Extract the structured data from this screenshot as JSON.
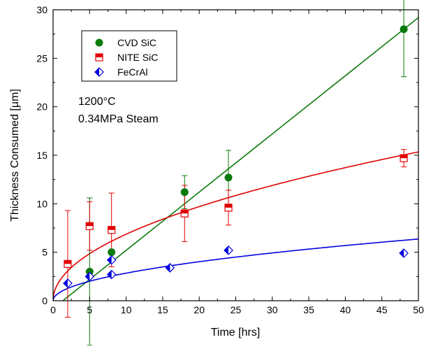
{
  "chart_data": {
    "type": "scatter",
    "title": "",
    "xlabel": "Time [hrs]",
    "ylabel": "Thickness Consumed [μm]",
    "xlim": [
      0,
      50
    ],
    "ylim": [
      0,
      30
    ],
    "x_ticks": [
      "0",
      "5",
      "10",
      "15",
      "20",
      "25",
      "30",
      "35",
      "40",
      "45",
      "50"
    ],
    "y_ticks": [
      "0",
      "5",
      "10",
      "15",
      "20",
      "25",
      "30"
    ],
    "grid": false,
    "legend_position": "top-left",
    "annotations": [
      "1200°C",
      "0.34MPa Steam"
    ],
    "series": [
      {
        "name": "CVD SiC",
        "color": "#0a7a0a",
        "marker": "filled-circle",
        "points": [
          {
            "x": 5,
            "y": 3.0,
            "err": 7.6
          },
          {
            "x": 8,
            "y": 5.0,
            "err": 0
          },
          {
            "x": 18,
            "y": 11.2,
            "err": 1.7
          },
          {
            "x": 24,
            "y": 12.7,
            "err": 2.8
          },
          {
            "x": 48,
            "y": 28.0,
            "err": 4.9
          }
        ],
        "fit": {
          "kind": "linear",
          "slope": 0.6,
          "intercept": -0.8
        }
      },
      {
        "name": "NITE SiC",
        "color": "#e00000",
        "marker": "half-filled-square",
        "points": [
          {
            "x": 2,
            "y": 3.8,
            "err": 5.5
          },
          {
            "x": 5,
            "y": 7.7,
            "err": 2.5
          },
          {
            "x": 8,
            "y": 7.3,
            "err": 3.8
          },
          {
            "x": 18,
            "y": 9.0,
            "err": 2.9
          },
          {
            "x": 24,
            "y": 9.6,
            "err": 1.8
          },
          {
            "x": 48,
            "y": 14.7,
            "err": 0.9
          }
        ],
        "fit": {
          "kind": "sqrt",
          "a": 2.17
        }
      },
      {
        "name": "FeCrAl",
        "color": "#0000e0",
        "marker": "half-filled-diamond",
        "points": [
          {
            "x": 2,
            "y": 1.8,
            "err": 0
          },
          {
            "x": 5,
            "y": 2.5,
            "err": 0
          },
          {
            "x": 8,
            "y": 2.7,
            "err": 0
          },
          {
            "x": 8,
            "y": 4.2,
            "err": 0
          },
          {
            "x": 16,
            "y": 3.4,
            "err": 0
          },
          {
            "x": 24,
            "y": 5.2,
            "err": 0
          },
          {
            "x": 48,
            "y": 4.9,
            "err": 0
          }
        ],
        "fit": {
          "kind": "sqrt",
          "a": 0.9
        }
      }
    ]
  }
}
